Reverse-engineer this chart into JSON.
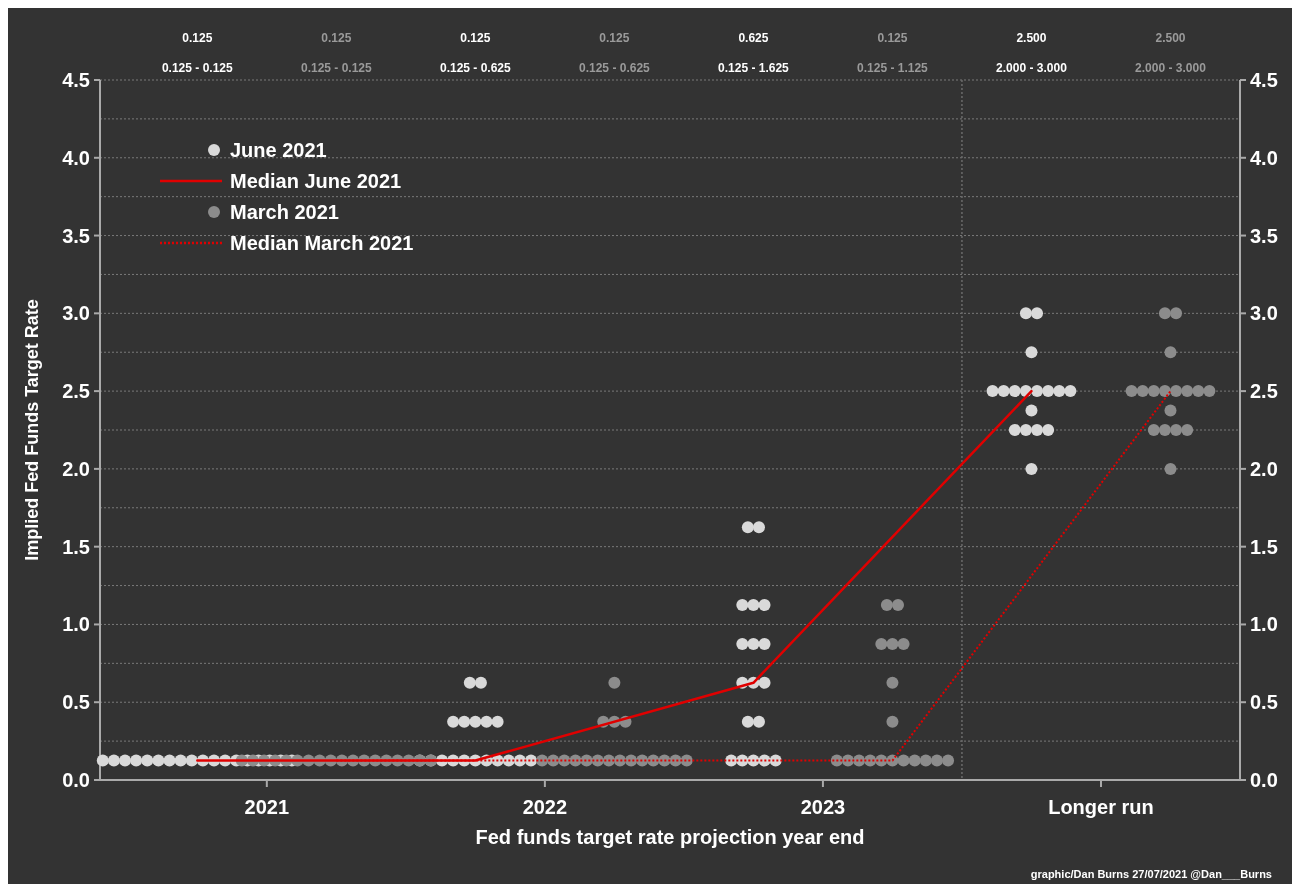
{
  "chart_data": {
    "type": "scatter",
    "xlabel": "Fed funds target rate projection year end",
    "ylabel": "Implied Fed Funds Target Rate",
    "xlim": [
      2020.4,
      2024.5
    ],
    "xticks": [
      2021,
      2022,
      2023,
      {
        "value": 2024,
        "label": "Longer run"
      }
    ],
    "ylim": [
      0,
      4.5
    ],
    "yticks": [
      {
        "value": 0,
        "label": "0.0"
      },
      {
        "value": 0.25,
        "label": null
      },
      {
        "value": 0.5,
        "label": "0.5"
      },
      {
        "value": 0.75,
        "label": null
      },
      {
        "value": 1,
        "label": "1.0"
      },
      {
        "value": 1.25,
        "label": null
      },
      {
        "value": 1.5,
        "label": "1.5"
      },
      {
        "value": 1.75,
        "label": null
      },
      {
        "value": 2,
        "label": "2.0"
      },
      {
        "value": 2.25,
        "label": null
      },
      {
        "value": 2.5,
        "label": "2.5"
      },
      {
        "value": 2.75,
        "label": null
      },
      {
        "value": 3,
        "label": "3.0"
      },
      {
        "value": 3.25,
        "label": null
      },
      {
        "value": 3.5,
        "label": "3.5"
      },
      {
        "value": 3.75,
        "label": null
      },
      {
        "value": 4,
        "label": "4.0"
      },
      {
        "value": 4.25,
        "label": null
      },
      {
        "value": 4.5,
        "label": "4.5"
      }
    ],
    "y2lim": [
      0,
      4.5
    ],
    "y2ticks": [
      {
        "value": 0,
        "label": "0.0"
      },
      {
        "value": 0.5,
        "label": "0.5"
      },
      {
        "value": 1,
        "label": "1.0"
      },
      {
        "value": 1.5,
        "label": "1.5"
      },
      {
        "value": 2,
        "label": "2.0"
      },
      {
        "value": 2.5,
        "label": "2.5"
      },
      {
        "value": 3,
        "label": "3.0"
      },
      {
        "value": 3.5,
        "label": "3.5"
      },
      {
        "value": 4,
        "label": "4.0"
      },
      {
        "value": 4.5,
        "label": "4.5"
      }
    ],
    "grid": "y",
    "legend": "top left",
    "marker": "circle",
    "ref_lines": [
      {
        "axis": "x",
        "value": 2023.5,
        "label": null,
        "color": "#6a6a6a",
        "line_style": "dotted"
      }
    ],
    "series": [
      {
        "name": "June 2021",
        "color": "#d9d9d9",
        "x": [
          2020.41,
          2020.45,
          2020.49,
          2020.53,
          2020.57,
          2020.61,
          2020.65,
          2020.69,
          2020.73,
          2020.77,
          2020.81,
          2020.85,
          2020.89,
          2020.93,
          2020.97,
          2021.01,
          2021.05,
          2021.09,
          2021.73,
          2021.77,
          2021.67,
          2021.71,
          2021.75,
          2021.79,
          2021.83,
          2021.55,
          2021.59,
          2021.63,
          2021.67,
          2021.71,
          2021.75,
          2021.79,
          2021.83,
          2021.87,
          2021.91,
          2021.95,
          2022.73,
          2022.77,
          2022.71,
          2022.75,
          2022.79,
          2022.71,
          2022.75,
          2022.79,
          2022.71,
          2022.75,
          2022.79,
          2022.73,
          2022.77,
          2022.67,
          2022.71,
          2022.75,
          2022.79,
          2022.83,
          2023.73,
          2023.77,
          2023.75,
          2023.61,
          2023.65,
          2023.69,
          2023.73,
          2023.77,
          2023.81,
          2023.85,
          2023.89,
          2023.75,
          2023.69,
          2023.73,
          2023.77,
          2023.81,
          2023.75
        ],
        "values": [
          0.125,
          0.125,
          0.125,
          0.125,
          0.125,
          0.125,
          0.125,
          0.125,
          0.125,
          0.125,
          0.125,
          0.125,
          0.125,
          0.125,
          0.125,
          0.125,
          0.125,
          0.125,
          0.625,
          0.625,
          0.375,
          0.375,
          0.375,
          0.375,
          0.375,
          0.125,
          0.125,
          0.125,
          0.125,
          0.125,
          0.125,
          0.125,
          0.125,
          0.125,
          0.125,
          0.125,
          1.625,
          1.625,
          1.125,
          1.125,
          1.125,
          0.875,
          0.875,
          0.875,
          0.625,
          0.625,
          0.625,
          0.375,
          0.375,
          0.125,
          0.125,
          0.125,
          0.125,
          0.125,
          3,
          3,
          2.75,
          2.5,
          2.5,
          2.5,
          2.5,
          2.5,
          2.5,
          2.5,
          2.5,
          2.375,
          2.25,
          2.25,
          2.25,
          2.25,
          2
        ]
      },
      {
        "name": "Median June 2021",
        "type": "line",
        "color": "#e00000",
        "line_style": "solid",
        "marker": "none",
        "x": [
          2020.75,
          2021.75,
          2022.75,
          2023.75
        ],
        "values": [
          0.125,
          0.125,
          0.625,
          2.5
        ]
      },
      {
        "name": "March 2021",
        "color": "#8c8c8c",
        "x": [
          2020.91,
          2020.95,
          2020.99,
          2021.03,
          2021.07,
          2021.11,
          2021.15,
          2021.19,
          2021.23,
          2021.27,
          2021.31,
          2021.35,
          2021.39,
          2021.43,
          2021.47,
          2021.51,
          2021.55,
          2021.59,
          2022.25,
          2022.21,
          2022.25,
          2022.29,
          2021.99,
          2022.03,
          2022.07,
          2022.11,
          2022.15,
          2022.19,
          2022.23,
          2022.27,
          2022.31,
          2022.35,
          2022.39,
          2022.43,
          2022.47,
          2022.51,
          2023.23,
          2023.27,
          2023.21,
          2023.25,
          2023.29,
          2023.25,
          2023.25,
          2023.05,
          2023.09,
          2023.13,
          2023.17,
          2023.21,
          2023.25,
          2023.29,
          2023.33,
          2023.37,
          2023.41,
          2023.45,
          2024.23,
          2024.27,
          2024.25,
          2024.11,
          2024.15,
          2024.19,
          2024.23,
          2024.27,
          2024.31,
          2024.35,
          2024.39,
          2024.25,
          2024.19,
          2024.23,
          2024.27,
          2024.31,
          2024.25
        ],
        "values": [
          0.125,
          0.125,
          0.125,
          0.125,
          0.125,
          0.125,
          0.125,
          0.125,
          0.125,
          0.125,
          0.125,
          0.125,
          0.125,
          0.125,
          0.125,
          0.125,
          0.125,
          0.125,
          0.625,
          0.375,
          0.375,
          0.375,
          0.125,
          0.125,
          0.125,
          0.125,
          0.125,
          0.125,
          0.125,
          0.125,
          0.125,
          0.125,
          0.125,
          0.125,
          0.125,
          0.125,
          1.125,
          1.125,
          0.875,
          0.875,
          0.875,
          0.625,
          0.375,
          0.125,
          0.125,
          0.125,
          0.125,
          0.125,
          0.125,
          0.125,
          0.125,
          0.125,
          0.125,
          0.125,
          3,
          3,
          2.75,
          2.5,
          2.5,
          2.5,
          2.5,
          2.5,
          2.5,
          2.5,
          2.5,
          2.375,
          2.25,
          2.25,
          2.25,
          2.25,
          2
        ]
      },
      {
        "name": "Median March 2021",
        "type": "line",
        "color": "#e00000",
        "line_style": "dotted",
        "marker": "none",
        "x": [
          2021.25,
          2022.25,
          2023.25,
          2024.25
        ],
        "values": [
          0.125,
          0.125,
          0.125,
          2.5
        ]
      }
    ],
    "annotations": [
      "0.125",
      "0.125 - 0.125",
      "0.125",
      "0.125 - 0.125",
      "0.125",
      "0.125 - 0.625",
      "0.125",
      "0.125 - 0.625",
      "0.625",
      "0.125 - 1.625",
      "0.125",
      "0.125 - 1.125",
      "2.500",
      "2.000 - 3.000",
      "2.500",
      "2.000 - 3.000",
      "graphic/Dan Burns 27/07/2021 @Dan___Burns"
    ]
  }
}
